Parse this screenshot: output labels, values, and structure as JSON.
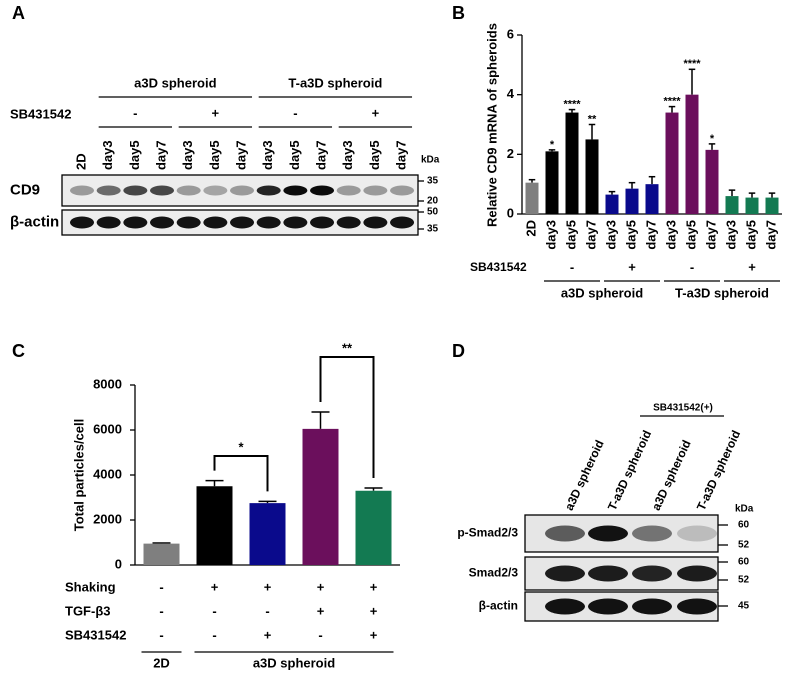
{
  "panel_labels": [
    "A",
    "B",
    "C",
    "D"
  ],
  "blot_a": {
    "groups": [
      "a3D spheroid",
      "T-a3D spheroid"
    ],
    "treatment": "SB431542",
    "treatment_signs": [
      "-",
      "+",
      "-",
      "+"
    ],
    "lanes": [
      "2D",
      "day3",
      "day5",
      "day7",
      "day3",
      "day5",
      "day7",
      "day3",
      "day5",
      "day7",
      "day3",
      "day5",
      "day7"
    ],
    "kda": "kDa",
    "rows": [
      {
        "label": "CD9",
        "markers": [
          35,
          20
        ]
      },
      {
        "label": "β-actin",
        "markers": [
          50,
          35
        ]
      }
    ]
  },
  "chart_data": [
    {
      "type": "bar",
      "y_label": "Relative CD9 mRNA of spheroids",
      "categories": [
        "2D",
        "day3",
        "day5",
        "day7",
        "day3",
        "day5",
        "day7",
        "day3",
        "day5",
        "day7",
        "day3",
        "day5",
        "day7"
      ],
      "values": [
        1.05,
        2.1,
        3.4,
        2.5,
        0.65,
        0.85,
        1.0,
        3.4,
        4.0,
        2.15,
        0.6,
        0.55,
        0.55
      ],
      "errors": [
        0.1,
        0.05,
        0.1,
        0.5,
        0.1,
        0.2,
        0.25,
        0.2,
        0.85,
        0.2,
        0.2,
        0.15,
        0.15
      ],
      "colors": [
        "#7f7f7f",
        "#000000",
        "#000000",
        "#000000",
        "#0a0a8c",
        "#0a0a8c",
        "#0a0a8c",
        "#6b0f5c",
        "#6b0f5c",
        "#6b0f5c",
        "#137a52",
        "#137a52",
        "#137a52"
      ],
      "annotations": [
        null,
        "*",
        "****",
        "**",
        null,
        null,
        null,
        "****",
        "****",
        "*",
        null,
        null,
        null
      ],
      "ylim": [
        0,
        6
      ],
      "yticks": [
        0,
        2,
        4,
        6
      ],
      "treatment": "SB431542",
      "treatment_signs": [
        "-",
        "+",
        "-",
        "+"
      ],
      "groups": [
        "a3D spheroid",
        "T-a3D spheroid"
      ]
    },
    {
      "type": "bar",
      "y_label": "Total particles/cell",
      "values": [
        950,
        3500,
        2750,
        6050,
        3300
      ],
      "errors": [
        30,
        250,
        80,
        750,
        120
      ],
      "colors": [
        "#7f7f7f",
        "#000000",
        "#0a0a8c",
        "#6b0f5c",
        "#137a52"
      ],
      "ylim": [
        0,
        8000
      ],
      "yticks": [
        0,
        2000,
        4000,
        6000,
        8000
      ],
      "comparisons": [
        "*",
        "**"
      ],
      "conditions": [
        {
          "name": "Shaking",
          "values": [
            "-",
            "+",
            "+",
            "+",
            "+"
          ]
        },
        {
          "name": "TGF-β3",
          "values": [
            "-",
            "-",
            "-",
            "+",
            "+"
          ]
        },
        {
          "name": "SB431542",
          "values": [
            "-",
            "-",
            "+",
            "-",
            "+"
          ]
        }
      ],
      "groups": [
        "2D",
        "a3D spheroid"
      ]
    }
  ],
  "blot_d": {
    "lanes": [
      "a3D spheroid",
      "T-a3D spheroid",
      "a3D spheroid",
      "T-a3D spheroid"
    ],
    "treatment": "SB431542(+)",
    "kda": "kDa",
    "rows": [
      {
        "label": "p-Smad2/3",
        "markers": [
          60,
          52
        ]
      },
      {
        "label": "Smad2/3",
        "markers": [
          60,
          52
        ]
      },
      {
        "label": "β-actin",
        "markers": [
          45
        ]
      }
    ]
  }
}
